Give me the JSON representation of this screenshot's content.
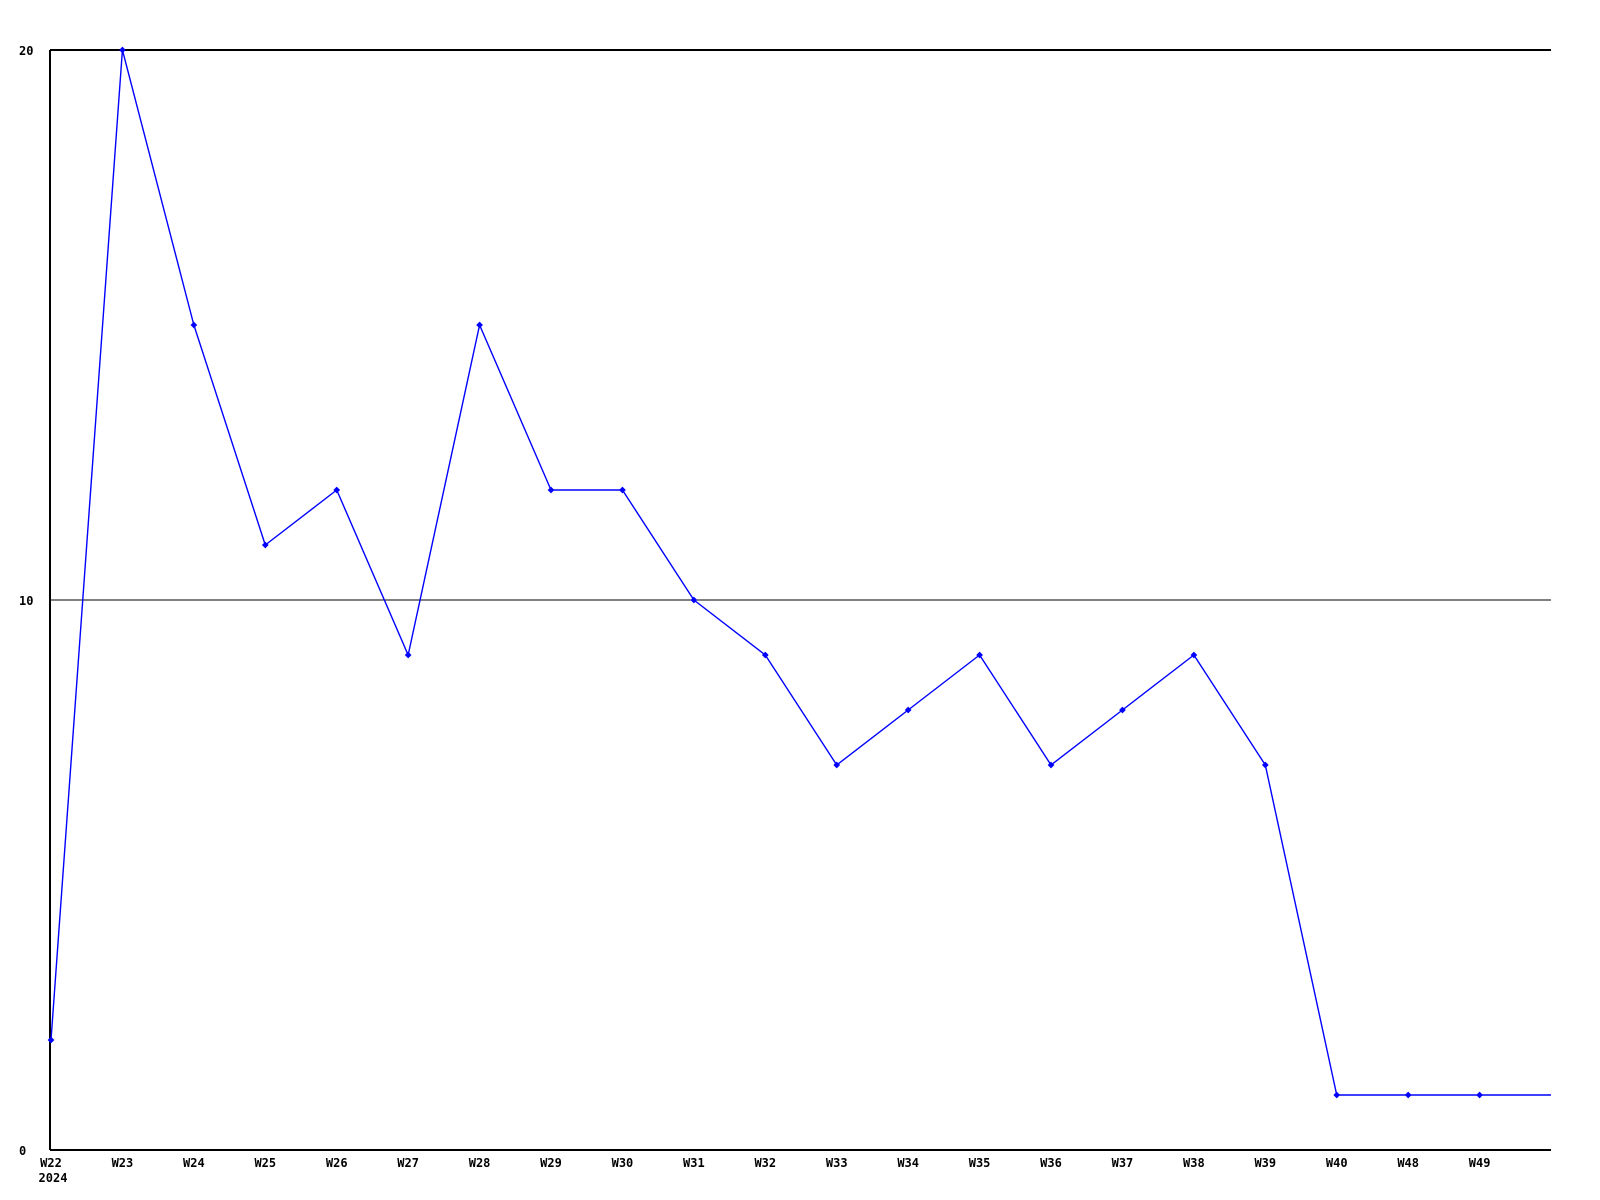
{
  "chart_data": {
    "type": "line",
    "title": "",
    "xlabel": "",
    "ylabel": "",
    "categories": [
      "W22",
      "W23",
      "W24",
      "W25",
      "W26",
      "W27",
      "W28",
      "W29",
      "W30",
      "W31",
      "W32",
      "W33",
      "W34",
      "W35",
      "W36",
      "W37",
      "W38",
      "W39",
      "W40",
      "W48",
      "W49"
    ],
    "values": [
      2,
      20,
      15,
      11,
      12,
      9,
      15,
      12,
      12,
      10,
      9,
      7,
      8,
      9,
      7,
      8,
      9,
      7,
      1,
      1,
      1
    ],
    "year_label": "2024",
    "y_ticks": [
      0,
      10,
      20
    ],
    "ylim": [
      0,
      20
    ],
    "grid": "horizontal-lines-at-y-ticks",
    "legend": "none",
    "marker": "diamond",
    "line_color": "#0000ff",
    "axis_color": "#000000",
    "background_color": "#ffffff",
    "extends_flat_to_right_edge": true,
    "right_edge_extension_value": 1
  }
}
